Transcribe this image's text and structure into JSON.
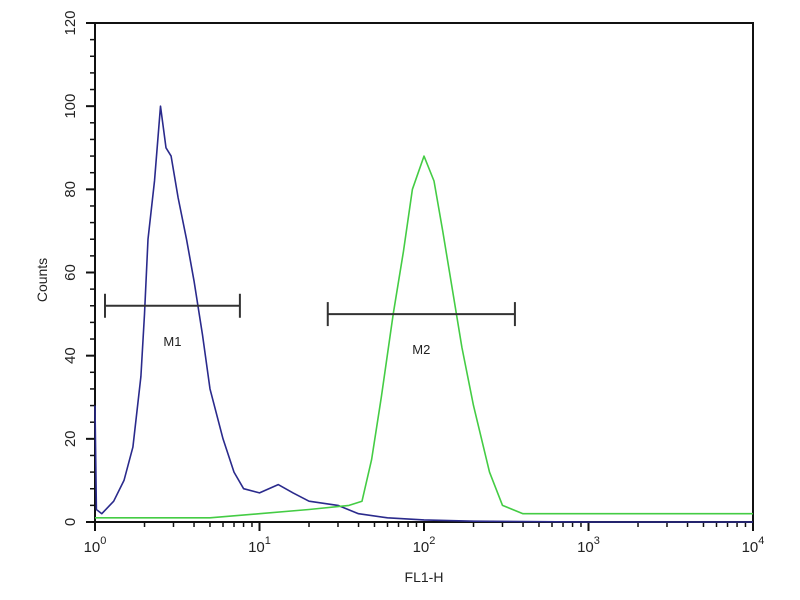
{
  "chart_data": {
    "type": "line",
    "title": "",
    "xlabel": "FL1-H",
    "ylabel": "Counts",
    "x_scale": "log",
    "xlim": [
      1,
      10000
    ],
    "ylim": [
      0,
      120
    ],
    "x_ticks": [
      {
        "value": 1,
        "base": "10",
        "exp": "0"
      },
      {
        "value": 10,
        "base": "10",
        "exp": "1"
      },
      {
        "value": 100,
        "base": "10",
        "exp": "2"
      },
      {
        "value": 1000,
        "base": "10",
        "exp": "3"
      },
      {
        "value": 10000,
        "base": "10",
        "exp": "4"
      }
    ],
    "y_ticks": [
      "0",
      "20",
      "40",
      "60",
      "80",
      "100",
      "120"
    ],
    "grid": false,
    "series": [
      {
        "color": "#2a2a8c",
        "points": [
          [
            1.0,
            28
          ],
          [
            1.02,
            3
          ],
          [
            1.1,
            2
          ],
          [
            1.3,
            5
          ],
          [
            1.5,
            10
          ],
          [
            1.7,
            18
          ],
          [
            1.9,
            35
          ],
          [
            2.0,
            50
          ],
          [
            2.1,
            68
          ],
          [
            2.3,
            82
          ],
          [
            2.5,
            100
          ],
          [
            2.7,
            90
          ],
          [
            2.9,
            88
          ],
          [
            3.2,
            78
          ],
          [
            3.6,
            68
          ],
          [
            4.0,
            58
          ],
          [
            4.5,
            45
          ],
          [
            5.0,
            32
          ],
          [
            6.0,
            20
          ],
          [
            7.0,
            12
          ],
          [
            8.0,
            8
          ],
          [
            10,
            7
          ],
          [
            13,
            9
          ],
          [
            16,
            7
          ],
          [
            20,
            5
          ],
          [
            30,
            4
          ],
          [
            40,
            2
          ],
          [
            60,
            1
          ],
          [
            100,
            0.5
          ],
          [
            200,
            0.2
          ],
          [
            1000,
            0
          ],
          [
            10000,
            0
          ]
        ]
      },
      {
        "color": "#44cc44",
        "points": [
          [
            1,
            1
          ],
          [
            5,
            1
          ],
          [
            10,
            2
          ],
          [
            20,
            3
          ],
          [
            35,
            4
          ],
          [
            42,
            5
          ],
          [
            48,
            15
          ],
          [
            55,
            30
          ],
          [
            65,
            50
          ],
          [
            75,
            65
          ],
          [
            85,
            80
          ],
          [
            100,
            88
          ],
          [
            115,
            82
          ],
          [
            130,
            70
          ],
          [
            150,
            55
          ],
          [
            170,
            42
          ],
          [
            200,
            28
          ],
          [
            250,
            12
          ],
          [
            300,
            4
          ],
          [
            400,
            2
          ],
          [
            1000,
            2
          ],
          [
            10000,
            2
          ]
        ]
      }
    ],
    "gates": [
      {
        "label": "M1",
        "x_start": 1.15,
        "x_end": 7.6,
        "y": 52
      },
      {
        "label": "M2",
        "x_start": 26,
        "x_end": 357,
        "y": 50
      }
    ]
  }
}
